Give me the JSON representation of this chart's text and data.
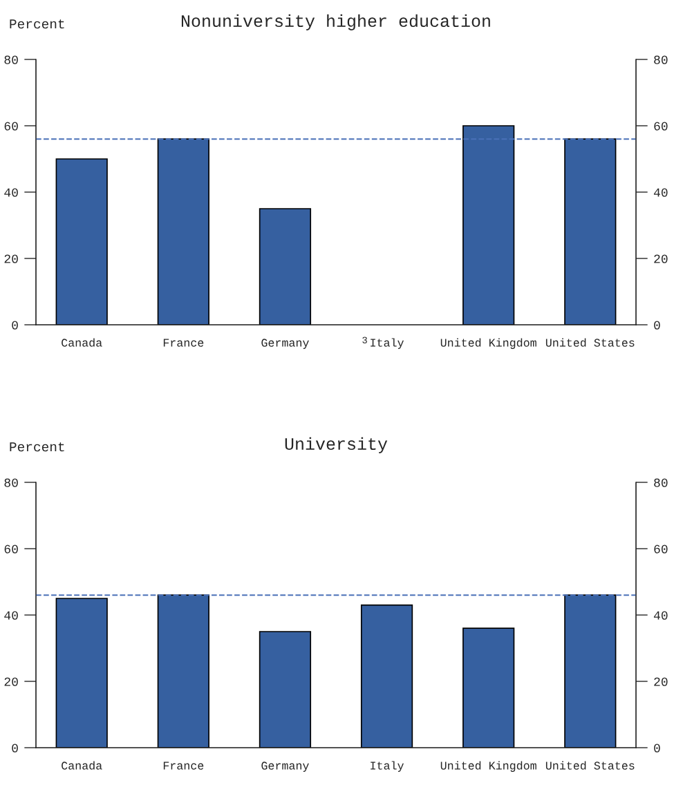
{
  "chart_data": [
    {
      "type": "bar",
      "title": "Nonuniversity higher education",
      "ylabel": "Percent",
      "categories": [
        "Canada",
        "France",
        "Germany",
        "Italy",
        "United Kingdom",
        "United States"
      ],
      "series": [
        {
          "color": "#3660a0",
          "values": [
            50,
            56,
            35,
            0,
            60,
            56
          ]
        }
      ],
      "ylim": [
        0,
        80
      ],
      "yticks": [
        0,
        20,
        40,
        60,
        80
      ],
      "y2lim": [
        0,
        80
      ],
      "y2ticks": [
        0,
        20,
        40,
        60,
        80
      ],
      "ref_lines": [
        {
          "axis": "y",
          "value": 56,
          "color": "#4a70b8",
          "line_style": "dashed"
        }
      ],
      "annotations": [
        {
          "text": "3",
          "x": "Italy",
          "y": 0
        }
      ],
      "grid": false,
      "legend": false
    },
    {
      "type": "bar",
      "title": "University",
      "ylabel": "Percent",
      "categories": [
        "Canada",
        "France",
        "Germany",
        "Italy",
        "United Kingdom",
        "United States"
      ],
      "series": [
        {
          "color": "#3660a0",
          "values": [
            45,
            46,
            35,
            43,
            36,
            46
          ]
        }
      ],
      "ylim": [
        0,
        80
      ],
      "yticks": [
        0,
        20,
        40,
        60,
        80
      ],
      "y2lim": [
        0,
        80
      ],
      "y2ticks": [
        0,
        20,
        40,
        60,
        80
      ],
      "ref_lines": [
        {
          "axis": "y",
          "value": 46,
          "color": "#4a70b8",
          "line_style": "dashed"
        }
      ],
      "grid": false,
      "legend": false
    }
  ]
}
